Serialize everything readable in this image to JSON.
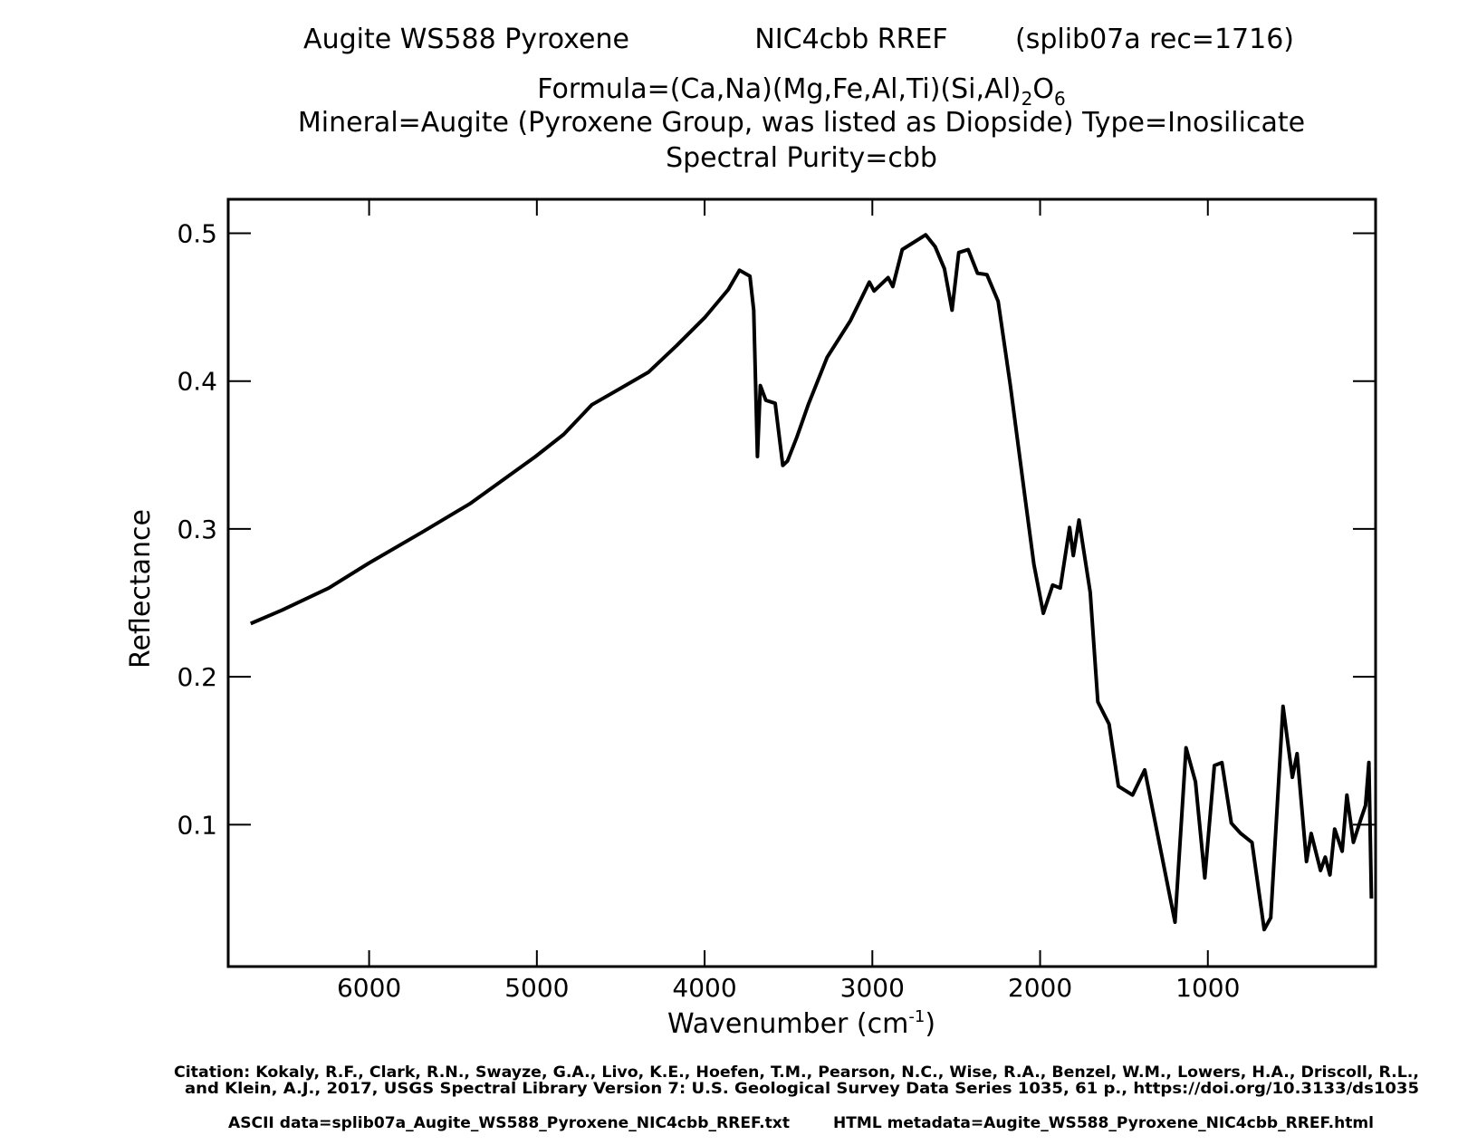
{
  "chart_data": {
    "type": "line",
    "title": "Augite WS588 Pyroxene",
    "sample": "NIC4cbb RREF",
    "record": "(splib07a rec=1716)",
    "formula": [
      "Formula=(Ca,Na)(Mg,Fe,Al,Ti)(Si,Al)",
      "2",
      "O",
      "6"
    ],
    "mineral": "Mineral=Augite (Pyroxene Group, was listed as Diopside)  Type=Inosilicate",
    "purity": "Spectral Purity=cbb",
    "x_label": [
      "Wavenumber (cm",
      "-1",
      ")"
    ],
    "y_label": "Reflectance",
    "citation": [
      "Citation: Kokaly, R.F., Clark, R.N., Swayze, G.A., Livo, K.E., Hoefen, T.M., Pearson, N.C., Wise, R.A., Benzel, W.M., Lowers, H.A., Driscoll, R.L.,",
      "and Klein, A.J., 2017, USGS Spectral Library Version 7: U.S. Geological Survey Data Series 1035, 61 p., https://doi.org/10.3133/ds1035"
    ],
    "ascii_data": "ASCII data=splib07a_Augite_WS588_Pyroxene_NIC4cbb_RREF.txt",
    "html_metadata": "HTML metadata=Augite_WS588_Pyroxene_NIC4cbb_RREF.html",
    "color": "#000000",
    "xlim": [
      6840,
      0
    ],
    "ylim": [
      0.004,
      0.523
    ],
    "xticks": [
      6000,
      5000,
      4000,
      3000,
      2000,
      1000
    ],
    "yticks": [
      0.1,
      0.2,
      0.3,
      0.4,
      0.5
    ],
    "x": [
      6706,
      6521,
      6241,
      6000,
      5681,
      5400,
      5204,
      5008,
      4840,
      4672,
      4503,
      4335,
      4167,
      3999,
      3859,
      3792,
      3730,
      3707,
      3685,
      3668,
      3635,
      3579,
      3534,
      3506,
      3450,
      3382,
      3270,
      3130,
      3018,
      2990,
      2906,
      2878,
      2822,
      2682,
      2626,
      2570,
      2525,
      2485,
      2429,
      2373,
      2317,
      2250,
      2177,
      2093,
      2037,
      1981,
      1925,
      1880,
      1824,
      1802,
      1768,
      1701,
      1656,
      1589,
      1533,
      1449,
      1376,
      1196,
      1130,
      1074,
      1018,
      961,
      916,
      860,
      804,
      737,
      664,
      625,
      552,
      496,
      468,
      412,
      384,
      328,
      300,
      272,
      244,
      199,
      171,
      132,
      87,
      60,
      40,
      25
    ],
    "values": [
      0.236,
      0.245,
      0.26,
      0.277,
      0.298,
      0.317,
      0.333,
      0.349,
      0.364,
      0.384,
      0.395,
      0.406,
      0.424,
      0.443,
      0.462,
      0.475,
      0.471,
      0.448,
      0.349,
      0.397,
      0.387,
      0.385,
      0.343,
      0.346,
      0.362,
      0.384,
      0.416,
      0.441,
      0.467,
      0.461,
      0.47,
      0.464,
      0.489,
      0.499,
      0.491,
      0.476,
      0.448,
      0.487,
      0.489,
      0.473,
      0.472,
      0.454,
      0.397,
      0.324,
      0.276,
      0.243,
      0.262,
      0.26,
      0.301,
      0.282,
      0.306,
      0.257,
      0.183,
      0.168,
      0.126,
      0.12,
      0.137,
      0.034,
      0.152,
      0.129,
      0.064,
      0.14,
      0.142,
      0.101,
      0.094,
      0.088,
      0.029,
      0.037,
      0.18,
      0.132,
      0.148,
      0.075,
      0.094,
      0.069,
      0.078,
      0.066,
      0.097,
      0.082,
      0.12,
      0.088,
      0.104,
      0.113,
      0.142,
      0.05
    ]
  }
}
